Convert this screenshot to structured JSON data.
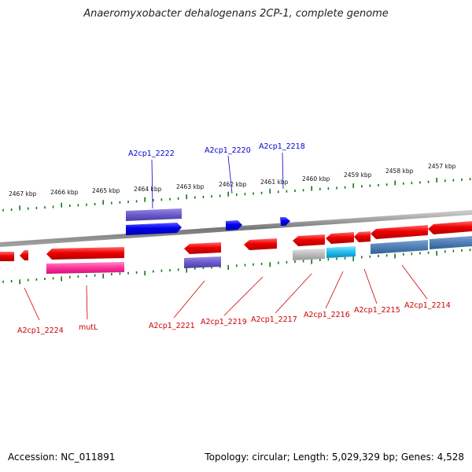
{
  "title": "Anaeromyxobacter dehalogenans 2CP-1, complete genome",
  "accession_label": "Accession: NC_011891",
  "topology_label": "Topology: circular; Length: 5,029,329 bp; Genes: 4,528",
  "colors": {
    "forward_cds": "#0000ee",
    "reverse_cds": "#ee0000",
    "forward_gene": "#6a5acd",
    "reverse_gene": "#ff3399",
    "tick": "#117711",
    "backbone": "#888888",
    "forward_label": "#0000cc",
    "reverse_label": "#cc0000"
  },
  "kbp_ticks": [
    "2467 kbp",
    "2466 kbp",
    "2465 kbp",
    "2464 kbp",
    "2463 kbp",
    "2462 kbp",
    "2461 kbp",
    "2460 kbp",
    "2459 kbp",
    "2458 kbp",
    "2457 kbp"
  ],
  "forward_labels": [
    "A2cp1_2222",
    "A2cp1_2220",
    "A2cp1_2218"
  ],
  "reverse_labels": [
    "A2cp1_2224",
    "mutL",
    "A2cp1_2221",
    "A2cp1_2219",
    "A2cp1_2217",
    "A2cp1_2216",
    "A2cp1_2215",
    "A2cp1_2214"
  ]
}
